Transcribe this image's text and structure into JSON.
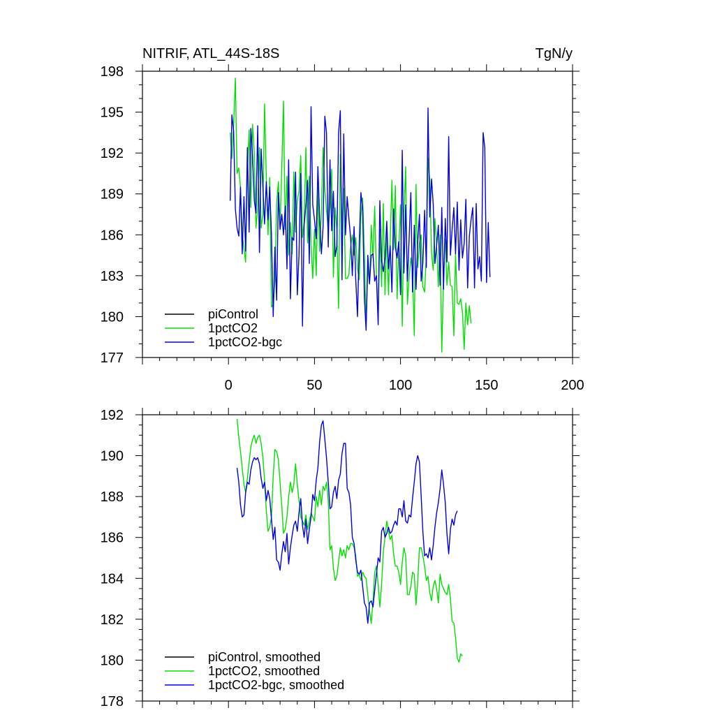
{
  "chart_data": [
    {
      "type": "line",
      "title": "NITRIF, ATL_44S-18S",
      "units": "TgN/y",
      "xlabel": "",
      "ylabel": "",
      "xlim": [
        -50,
        200
      ],
      "ylim": [
        177,
        198
      ],
      "xticks": [
        0,
        50,
        100,
        150,
        200
      ],
      "yticks": [
        177,
        180,
        183,
        186,
        189,
        192,
        195,
        198
      ],
      "legend_position": "bottom-left",
      "series": [
        {
          "name": "piControl",
          "color": "#000000",
          "x": [],
          "y": []
        },
        {
          "name": "1pctCO2",
          "color": "#00e000",
          "x_start": 1,
          "x_step": 1,
          "y": [
            193.5,
            191.6,
            194.1,
            197.5,
            190.5,
            190.9,
            189.5,
            186.0,
            185.0,
            184.0,
            190.6,
            193.7,
            188.0,
            194.1,
            192.0,
            186.5,
            188.0,
            192.4,
            186.5,
            187.5,
            195.6,
            190.2,
            186.0,
            190.2,
            180.7,
            180.9,
            182.5,
            188.3,
            189.9,
            186.5,
            191.0,
            195.8,
            186.4,
            190.3,
            184.5,
            186.9,
            184.6,
            190.6,
            186.2,
            188.5,
            189.2,
            191.8,
            185.8,
            187.0,
            192.4,
            185.4,
            190.3,
            185.2,
            182.8,
            186.4,
            183.0,
            189.5,
            184.8,
            187.6,
            192.4,
            189.3,
            187.8,
            186.3,
            188.1,
            190.8,
            182.9,
            188.0,
            186.4,
            180.6,
            191.9,
            186.4,
            189.4,
            182.8,
            182.8,
            183.1,
            185.1,
            186.0,
            184.5,
            185.8,
            183.5,
            182.7,
            187.4,
            188.7,
            184.6,
            179.4,
            183.6,
            182.4,
            186.7,
            184.3,
            188.1,
            183.1,
            179.8,
            186.4,
            182.2,
            188.3,
            181.6,
            186.5,
            181.6,
            185.5,
            190.0,
            184.9,
            189.6,
            181.3,
            184.9,
            188.2,
            179.3,
            187.5,
            191.0,
            180.9,
            182.9,
            184.3,
            183.4,
            178.6,
            189.7,
            183.6,
            185.4,
            186.0,
            182.2,
            181.8,
            184.5,
            191.6,
            190.0,
            184.7,
            183.4,
            187.2,
            185.3,
            182.2,
            186.0,
            177.4,
            182.8,
            185.7,
            182.3,
            184.0,
            182.3,
            182.2,
            178.6,
            184.6,
            181.0,
            180.9,
            181.3,
            180.3,
            177.6,
            181.0,
            179.4,
            180.8,
            179.5
          ]
        },
        {
          "name": "1pctCO2-bgc",
          "color": "#0000e0",
          "x_start": 1,
          "x_step": 1,
          "y": [
            188.5,
            194.8,
            193.6,
            187.9,
            186.5,
            185.9,
            189.5,
            184.6,
            188.8,
            184.8,
            192.4,
            186.2,
            193.8,
            191.8,
            188.5,
            187.6,
            194.0,
            184.7,
            192.3,
            189.5,
            186.8,
            189.9,
            187.1,
            189.5,
            186.0,
            180.0,
            185.1,
            181.2,
            189.1,
            186.4,
            187.5,
            186.0,
            188.1,
            183.5,
            191.5,
            181.3,
            185.8,
            185.6,
            190.6,
            181.6,
            184.5,
            190.5,
            179.3,
            186.7,
            188.2,
            190.0,
            183.9,
            195.4,
            188.2,
            187.1,
            185.7,
            191.0,
            187.2,
            184.6,
            186.6,
            194.7,
            193.5,
            185.1,
            191.5,
            186.3,
            189.2,
            184.4,
            185.2,
            193.5,
            195.1,
            182.7,
            193.4,
            186.0,
            188.8,
            187.2,
            185.8,
            183.0,
            186.6,
            182.7,
            180.0,
            185.4,
            189.1,
            187.8,
            181.3,
            179.0,
            184.5,
            182.4,
            184.5,
            184.6,
            182.6,
            183.0,
            179.4,
            188.5,
            184.1,
            183.3,
            184.3,
            187.0,
            183.5,
            185.2,
            181.8,
            187.9,
            185.1,
            184.3,
            185.5,
            181.6,
            192.2,
            183.2,
            188.2,
            182.6,
            185.7,
            189.1,
            181.8,
            186.7,
            182.0,
            185.4,
            187.5,
            182.6,
            183.9,
            187.8,
            183.6,
            195.3,
            187.3,
            190.1,
            188.3,
            183.9,
            185.2,
            186.7,
            182.3,
            188.0,
            182.0,
            187.2,
            184.0,
            193.2,
            184.5,
            186.4,
            188.0,
            184.6,
            188.4,
            183.4,
            187.1,
            184.3,
            185.4,
            188.6,
            182.1,
            185.9,
            187.1,
            188.0,
            182.1,
            188.3,
            183.5,
            184.4,
            182.6,
            193.5,
            192.4,
            182.5,
            186.9,
            182.9
          ]
        }
      ]
    },
    {
      "type": "line",
      "title": "",
      "xlabel": "",
      "ylabel": "",
      "xlim": [
        -50,
        200
      ],
      "ylim": [
        178,
        192
      ],
      "xticks": [
        0,
        50,
        100,
        150,
        200
      ],
      "yticks": [
        178,
        180,
        182,
        184,
        186,
        188,
        190,
        192
      ],
      "legend_position": "bottom-left",
      "series": [
        {
          "name": "piControl, smoothed",
          "color": "#000000",
          "x": [],
          "y": []
        },
        {
          "name": "1pctCO2, smoothed",
          "color": "#00e000",
          "x_start": 5,
          "x_step": 1,
          "y": [
            191.8,
            190.9,
            190.2,
            189.4,
            188.6,
            188.2,
            188.9,
            189.7,
            190.4,
            190.8,
            191.0,
            190.6,
            190.9,
            191.0,
            190.6,
            189.9,
            188.8,
            187.3,
            186.3,
            186.5,
            187.0,
            189.0,
            190.3,
            190.2,
            189.8,
            188.7,
            187.5,
            186.2,
            186.4,
            187.0,
            188.0,
            188.7,
            188.2,
            188.6,
            189.6,
            188.6,
            187.8,
            187.0,
            186.8,
            186.6,
            187.1,
            186.4,
            186.8,
            187.2,
            187.0,
            186.8,
            188.0,
            187.5,
            188.3,
            187.6,
            188.5,
            188.3,
            188.7,
            187.8,
            185.4,
            185.6,
            184.5,
            183.9,
            184.1,
            184.8,
            185.5,
            185.1,
            185.4,
            185.0,
            185.6,
            185.4,
            185.7,
            185.7,
            185.5,
            185.1,
            184.1,
            184.2,
            183.9,
            184.3,
            184.1,
            184.0,
            183.2,
            182.4,
            181.8,
            182.9,
            184.3,
            184.6,
            183.7,
            182.6,
            183.7,
            185.3,
            186.0,
            186.8,
            186.3,
            185.9,
            186.1,
            185.2,
            184.6,
            184.6,
            184.3,
            183.7,
            184.8,
            185.5,
            185.1,
            183.2,
            183.2,
            183.6,
            184.3,
            184.2,
            182.7,
            183.8,
            185.5,
            185.5,
            185.1,
            184.6,
            183.9,
            184.1,
            183.3,
            182.9,
            183.6,
            183.9,
            183.5,
            182.8,
            184.2,
            183.7,
            183.5,
            183.3,
            183.2,
            183.7,
            183.0,
            181.9,
            181.8,
            181.1,
            180.1,
            179.9,
            180.3,
            180.2
          ]
        },
        {
          "name": "1pctCO2-bgc, smoothed",
          "color": "#0000e0",
          "x_start": 5,
          "x_step": 1,
          "y": [
            189.4,
            188.7,
            187.6,
            187.0,
            187.1,
            188.2,
            188.7,
            188.6,
            189.3,
            189.7,
            189.9,
            189.8,
            189.9,
            189.6,
            188.9,
            188.4,
            188.7,
            187.8,
            188.3,
            187.9,
            186.9,
            185.9,
            186.5,
            184.9,
            184.8,
            184.4,
            185.2,
            185.8,
            185.3,
            186.2,
            184.7,
            185.5,
            186.1,
            186.6,
            186.8,
            186.3,
            187.2,
            187.9,
            186.6,
            186.0,
            186.9,
            185.7,
            186.4,
            187.0,
            188.1,
            187.8,
            188.8,
            189.4,
            190.7,
            191.5,
            191.7,
            190.8,
            189.9,
            188.7,
            187.4,
            187.5,
            188.2,
            188.5,
            187.9,
            188.8,
            189.1,
            190.1,
            190.6,
            190.6,
            188.4,
            188.2,
            187.6,
            186.0,
            185.7,
            184.9,
            184.3,
            184.2,
            184.4,
            183.6,
            182.8,
            182.6,
            181.8,
            182.8,
            182.9,
            182.6,
            183.4,
            184.2,
            185.0,
            184.8,
            186.3,
            186.5,
            186.0,
            186.2,
            186.5,
            186.2,
            186.3,
            186.6,
            186.8,
            186.6,
            187.4,
            187.4,
            187.0,
            187.8,
            186.8,
            186.7,
            187.1,
            187.0,
            187.9,
            188.7,
            189.6,
            190.0,
            189.7,
            188.0,
            186.3,
            185.1,
            185.2,
            185.0,
            185.5,
            184.9,
            185.6,
            186.5,
            187.2,
            187.7,
            188.4,
            189.3,
            188.6,
            187.7,
            186.2,
            185.2,
            186.4,
            186.9,
            186.6,
            187.1,
            187.3
          ]
        }
      ]
    }
  ]
}
